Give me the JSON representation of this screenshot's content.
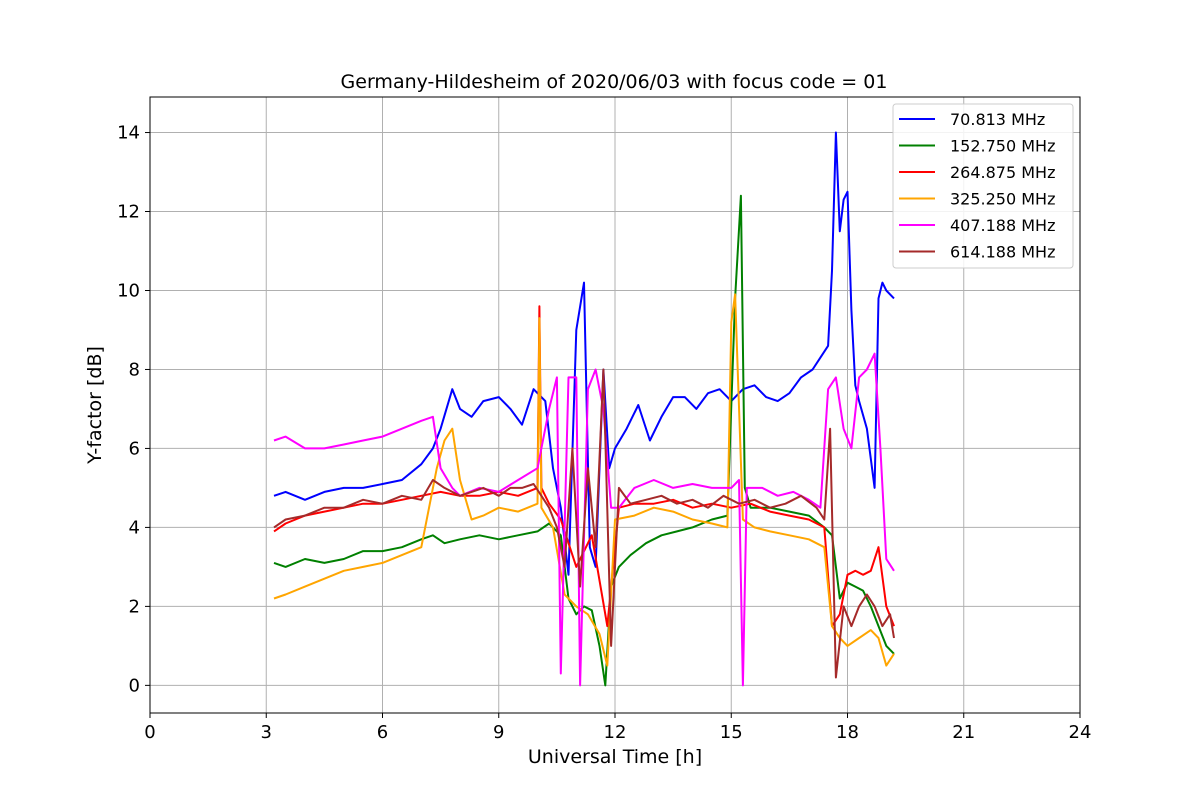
{
  "chart_data": {
    "type": "line",
    "title": "Germany-Hildesheim of 2020/06/03 with focus code = 01",
    "xlabel": "Universal Time [h]",
    "ylabel": "Y-factor [dB]",
    "xlim": [
      0,
      24
    ],
    "ylim": [
      -0.7,
      14.9
    ],
    "xticks": [
      0,
      3,
      6,
      9,
      12,
      15,
      18,
      21,
      24
    ],
    "yticks": [
      0,
      2,
      4,
      6,
      8,
      10,
      12,
      14
    ],
    "grid": true,
    "legend_position": "top-right",
    "series": [
      {
        "name": " 70.813 MHz",
        "color": "#0000ff",
        "x": [
          3.2,
          3.5,
          4.0,
          4.5,
          5.0,
          5.5,
          6.0,
          6.5,
          7.0,
          7.3,
          7.5,
          7.8,
          8.0,
          8.3,
          8.6,
          9.0,
          9.3,
          9.6,
          9.9,
          10.2,
          10.4,
          10.6,
          10.8,
          11.0,
          11.2,
          11.35,
          11.5,
          11.7,
          11.85,
          12.0,
          12.3,
          12.6,
          12.9,
          13.2,
          13.5,
          13.8,
          14.1,
          14.4,
          14.7,
          15.0,
          15.3,
          15.6,
          15.9,
          16.2,
          16.5,
          16.8,
          17.1,
          17.3,
          17.5,
          17.6,
          17.7,
          17.8,
          17.9,
          18.0,
          18.1,
          18.2,
          18.3,
          18.5,
          18.7,
          18.8,
          18.9,
          19.0,
          19.2
        ],
        "y": [
          4.8,
          4.9,
          4.7,
          4.9,
          5.0,
          5.0,
          5.1,
          5.2,
          5.6,
          6.0,
          6.5,
          7.5,
          7.0,
          6.8,
          7.2,
          7.3,
          7.0,
          6.6,
          7.5,
          7.2,
          5.5,
          4.5,
          2.8,
          9.0,
          10.2,
          3.5,
          3.0,
          8.0,
          5.5,
          6.0,
          6.5,
          7.1,
          6.2,
          6.8,
          7.3,
          7.3,
          7.0,
          7.4,
          7.5,
          7.2,
          7.5,
          7.6,
          7.3,
          7.2,
          7.4,
          7.8,
          8.0,
          8.3,
          8.6,
          10.5,
          14.0,
          11.5,
          12.3,
          12.5,
          9.5,
          7.6,
          7.2,
          6.5,
          5.0,
          9.8,
          10.2,
          10.0,
          9.8
        ]
      },
      {
        "name": "152.750 MHz",
        "color": "#008000",
        "x": [
          3.2,
          3.5,
          4.0,
          4.5,
          5.0,
          5.5,
          6.0,
          6.5,
          7.0,
          7.3,
          7.6,
          8.0,
          8.5,
          9.0,
          9.5,
          10.0,
          10.3,
          10.6,
          10.8,
          11.0,
          11.2,
          11.4,
          11.6,
          11.75,
          11.9,
          12.1,
          12.4,
          12.8,
          13.2,
          13.6,
          14.0,
          14.5,
          14.9,
          15.1,
          15.25,
          15.35,
          15.5,
          16.0,
          16.5,
          17.0,
          17.4,
          17.6,
          17.8,
          18.0,
          18.2,
          18.4,
          18.6,
          18.8,
          19.0,
          19.2
        ],
        "y": [
          3.1,
          3.0,
          3.2,
          3.1,
          3.2,
          3.4,
          3.4,
          3.5,
          3.7,
          3.8,
          3.6,
          3.7,
          3.8,
          3.7,
          3.8,
          3.9,
          4.1,
          3.8,
          2.2,
          1.8,
          2.0,
          1.9,
          1.0,
          0.0,
          2.5,
          3.0,
          3.3,
          3.6,
          3.8,
          3.9,
          4.0,
          4.2,
          4.3,
          9.8,
          12.4,
          5.0,
          4.5,
          4.5,
          4.4,
          4.3,
          4.0,
          3.8,
          2.2,
          2.6,
          2.5,
          2.4,
          2.0,
          1.5,
          1.0,
          0.8
        ]
      },
      {
        "name": "264.875 MHz",
        "color": "#ff0000",
        "x": [
          3.2,
          3.5,
          4.0,
          4.5,
          5.0,
          5.5,
          6.0,
          6.5,
          7.0,
          7.5,
          8.0,
          8.5,
          9.0,
          9.5,
          10.0,
          10.05,
          10.1,
          10.3,
          10.6,
          11.0,
          11.4,
          11.8,
          12.1,
          12.5,
          13.0,
          13.5,
          14.0,
          14.5,
          15.0,
          15.5,
          16.0,
          16.5,
          17.0,
          17.4,
          17.6,
          17.8,
          18.0,
          18.2,
          18.4,
          18.6,
          18.8,
          19.0,
          19.2
        ],
        "y": [
          3.9,
          4.1,
          4.3,
          4.4,
          4.5,
          4.6,
          4.6,
          4.7,
          4.8,
          4.9,
          4.8,
          4.8,
          4.9,
          4.8,
          5.0,
          9.6,
          5.0,
          4.6,
          4.2,
          3.0,
          3.8,
          1.5,
          4.5,
          4.6,
          4.6,
          4.7,
          4.5,
          4.6,
          4.5,
          4.6,
          4.4,
          4.3,
          4.2,
          4.0,
          1.5,
          1.8,
          2.8,
          2.9,
          2.8,
          2.9,
          3.5,
          2.0,
          1.5
        ]
      },
      {
        "name": "325.250 MHz",
        "color": "#ffa500",
        "x": [
          3.2,
          3.5,
          4.0,
          4.5,
          5.0,
          5.5,
          6.0,
          6.5,
          7.0,
          7.4,
          7.6,
          7.8,
          8.0,
          8.3,
          8.6,
          9.0,
          9.5,
          10.0,
          10.05,
          10.1,
          10.4,
          10.7,
          11.0,
          11.3,
          11.6,
          11.8,
          12.0,
          12.5,
          13.0,
          13.5,
          14.0,
          14.5,
          14.9,
          15.0,
          15.1,
          15.3,
          15.6,
          16.0,
          16.5,
          17.0,
          17.4,
          17.6,
          17.8,
          18.0,
          18.3,
          18.6,
          18.8,
          19.0,
          19.2
        ],
        "y": [
          2.2,
          2.3,
          2.5,
          2.7,
          2.9,
          3.0,
          3.1,
          3.3,
          3.5,
          5.5,
          6.2,
          6.5,
          5.2,
          4.2,
          4.3,
          4.5,
          4.4,
          4.6,
          9.3,
          4.5,
          4.0,
          2.3,
          2.0,
          1.8,
          1.3,
          0.5,
          4.2,
          4.3,
          4.5,
          4.4,
          4.2,
          4.1,
          4.0,
          9.2,
          9.9,
          4.2,
          4.0,
          3.9,
          3.8,
          3.7,
          3.5,
          1.5,
          1.2,
          1.0,
          1.2,
          1.4,
          1.2,
          0.5,
          0.8
        ]
      },
      {
        "name": "407.188 MHz",
        "color": "#ff00ff",
        "x": [
          3.2,
          3.5,
          4.0,
          4.5,
          5.0,
          5.5,
          6.0,
          6.5,
          7.0,
          7.3,
          7.5,
          7.8,
          8.0,
          8.5,
          9.0,
          9.5,
          10.0,
          10.3,
          10.5,
          10.6,
          10.8,
          11.0,
          11.1,
          11.3,
          11.5,
          11.7,
          11.9,
          12.1,
          12.5,
          13.0,
          13.5,
          14.0,
          14.5,
          15.0,
          15.2,
          15.3,
          15.4,
          15.8,
          16.2,
          16.6,
          17.0,
          17.3,
          17.5,
          17.7,
          17.9,
          18.1,
          18.3,
          18.5,
          18.7,
          18.85,
          19.0,
          19.2
        ],
        "y": [
          6.2,
          6.3,
          6.0,
          6.0,
          6.1,
          6.2,
          6.3,
          6.5,
          6.7,
          6.8,
          5.5,
          5.0,
          4.8,
          5.0,
          4.9,
          5.2,
          5.5,
          7.0,
          7.8,
          0.3,
          7.8,
          7.8,
          0.0,
          7.5,
          8.0,
          7.0,
          4.5,
          4.5,
          5.0,
          5.2,
          5.0,
          5.1,
          5.0,
          5.0,
          5.2,
          0.0,
          5.0,
          5.0,
          4.8,
          4.9,
          4.7,
          4.5,
          7.5,
          7.8,
          6.5,
          6.0,
          7.8,
          8.0,
          8.4,
          6.0,
          3.2,
          2.9
        ]
      },
      {
        "name": "614.188 MHz",
        "color": "#a52a2a",
        "x": [
          3.2,
          3.5,
          4.0,
          4.5,
          5.0,
          5.5,
          6.0,
          6.5,
          7.0,
          7.3,
          7.6,
          8.0,
          8.3,
          8.6,
          9.0,
          9.3,
          9.6,
          9.9,
          10.1,
          10.3,
          10.5,
          10.7,
          10.9,
          11.1,
          11.3,
          11.5,
          11.7,
          11.9,
          12.1,
          12.4,
          12.8,
          13.2,
          13.6,
          14.0,
          14.4,
          14.8,
          15.2,
          15.6,
          16.0,
          16.4,
          16.8,
          17.2,
          17.4,
          17.55,
          17.7,
          17.9,
          18.1,
          18.3,
          18.5,
          18.7,
          18.9,
          19.1,
          19.2
        ],
        "y": [
          4.0,
          4.2,
          4.3,
          4.5,
          4.5,
          4.7,
          4.6,
          4.8,
          4.7,
          5.2,
          5.0,
          4.8,
          4.9,
          5.0,
          4.8,
          5.0,
          5.0,
          5.1,
          4.8,
          4.5,
          4.0,
          3.0,
          6.0,
          2.5,
          5.5,
          3.5,
          8.0,
          1.0,
          5.0,
          4.6,
          4.7,
          4.8,
          4.6,
          4.7,
          4.5,
          4.8,
          4.6,
          4.7,
          4.5,
          4.6,
          4.8,
          4.5,
          4.2,
          6.5,
          0.2,
          2.0,
          1.5,
          2.0,
          2.3,
          2.0,
          1.5,
          1.8,
          1.2
        ]
      }
    ]
  }
}
